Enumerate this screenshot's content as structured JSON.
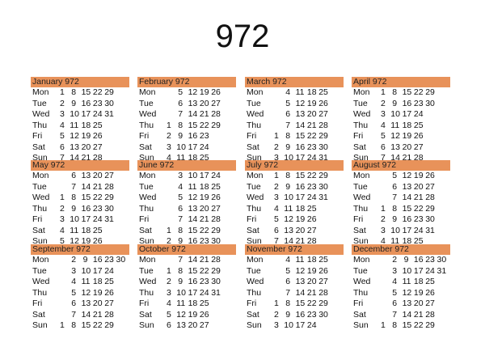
{
  "title": "972",
  "header_color": "#e8925a",
  "weekdays": [
    "Mon",
    "Tue",
    "Wed",
    "Thu",
    "Fri",
    "Sat",
    "Sun"
  ],
  "months": [
    {
      "name": "January 972",
      "rows": [
        [
          "1",
          "8",
          "15",
          "22",
          "29"
        ],
        [
          "2",
          "9",
          "16",
          "23",
          "30"
        ],
        [
          "3",
          "10",
          "17",
          "24",
          "31"
        ],
        [
          "4",
          "11",
          "18",
          "25"
        ],
        [
          "5",
          "12",
          "19",
          "26"
        ],
        [
          "6",
          "13",
          "20",
          "27"
        ],
        [
          "7",
          "14",
          "21",
          "28"
        ]
      ]
    },
    {
      "name": "February 972",
      "rows": [
        [
          "",
          "5",
          "12",
          "19",
          "26"
        ],
        [
          "",
          "6",
          "13",
          "20",
          "27"
        ],
        [
          "",
          "7",
          "14",
          "21",
          "28"
        ],
        [
          "1",
          "8",
          "15",
          "22",
          "29"
        ],
        [
          "2",
          "9",
          "16",
          "23"
        ],
        [
          "3",
          "10",
          "17",
          "24"
        ],
        [
          "4",
          "11",
          "18",
          "25"
        ]
      ]
    },
    {
      "name": "March 972",
      "rows": [
        [
          "",
          "4",
          "11",
          "18",
          "25"
        ],
        [
          "",
          "5",
          "12",
          "19",
          "26"
        ],
        [
          "",
          "6",
          "13",
          "20",
          "27"
        ],
        [
          "",
          "7",
          "14",
          "21",
          "28"
        ],
        [
          "1",
          "8",
          "15",
          "22",
          "29"
        ],
        [
          "2",
          "9",
          "16",
          "23",
          "30"
        ],
        [
          "3",
          "10",
          "17",
          "24",
          "31"
        ]
      ]
    },
    {
      "name": "April 972",
      "rows": [
        [
          "1",
          "8",
          "15",
          "22",
          "29"
        ],
        [
          "2",
          "9",
          "16",
          "23",
          "30"
        ],
        [
          "3",
          "10",
          "17",
          "24"
        ],
        [
          "4",
          "11",
          "18",
          "25"
        ],
        [
          "5",
          "12",
          "19",
          "26"
        ],
        [
          "6",
          "13",
          "20",
          "27"
        ],
        [
          "7",
          "14",
          "21",
          "28"
        ]
      ]
    },
    {
      "name": "May 972",
      "rows": [
        [
          "",
          "6",
          "13",
          "20",
          "27"
        ],
        [
          "",
          "7",
          "14",
          "21",
          "28"
        ],
        [
          "1",
          "8",
          "15",
          "22",
          "29"
        ],
        [
          "2",
          "9",
          "16",
          "23",
          "30"
        ],
        [
          "3",
          "10",
          "17",
          "24",
          "31"
        ],
        [
          "4",
          "11",
          "18",
          "25"
        ],
        [
          "5",
          "12",
          "19",
          "26"
        ]
      ]
    },
    {
      "name": "June 972",
      "rows": [
        [
          "",
          "3",
          "10",
          "17",
          "24"
        ],
        [
          "",
          "4",
          "11",
          "18",
          "25"
        ],
        [
          "",
          "5",
          "12",
          "19",
          "26"
        ],
        [
          "",
          "6",
          "13",
          "20",
          "27"
        ],
        [
          "",
          "7",
          "14",
          "21",
          "28"
        ],
        [
          "1",
          "8",
          "15",
          "22",
          "29"
        ],
        [
          "2",
          "9",
          "16",
          "23",
          "30"
        ]
      ]
    },
    {
      "name": "July 972",
      "rows": [
        [
          "1",
          "8",
          "15",
          "22",
          "29"
        ],
        [
          "2",
          "9",
          "16",
          "23",
          "30"
        ],
        [
          "3",
          "10",
          "17",
          "24",
          "31"
        ],
        [
          "4",
          "11",
          "18",
          "25"
        ],
        [
          "5",
          "12",
          "19",
          "26"
        ],
        [
          "6",
          "13",
          "20",
          "27"
        ],
        [
          "7",
          "14",
          "21",
          "28"
        ]
      ]
    },
    {
      "name": "August 972",
      "rows": [
        [
          "",
          "5",
          "12",
          "19",
          "26"
        ],
        [
          "",
          "6",
          "13",
          "20",
          "27"
        ],
        [
          "",
          "7",
          "14",
          "21",
          "28"
        ],
        [
          "1",
          "8",
          "15",
          "22",
          "29"
        ],
        [
          "2",
          "9",
          "16",
          "23",
          "30"
        ],
        [
          "3",
          "10",
          "17",
          "24",
          "31"
        ],
        [
          "4",
          "11",
          "18",
          "25"
        ]
      ]
    },
    {
      "name": "September 972",
      "rows": [
        [
          "",
          "2",
          "9",
          "16",
          "23",
          "30"
        ],
        [
          "",
          "3",
          "10",
          "17",
          "24"
        ],
        [
          "",
          "4",
          "11",
          "18",
          "25"
        ],
        [
          "",
          "5",
          "12",
          "19",
          "26"
        ],
        [
          "",
          "6",
          "13",
          "20",
          "27"
        ],
        [
          "",
          "7",
          "14",
          "21",
          "28"
        ],
        [
          "1",
          "8",
          "15",
          "22",
          "29"
        ]
      ]
    },
    {
      "name": "October 972",
      "rows": [
        [
          "",
          "7",
          "14",
          "21",
          "28"
        ],
        [
          "1",
          "8",
          "15",
          "22",
          "29"
        ],
        [
          "2",
          "9",
          "16",
          "23",
          "30"
        ],
        [
          "3",
          "10",
          "17",
          "24",
          "31"
        ],
        [
          "4",
          "11",
          "18",
          "25"
        ],
        [
          "5",
          "12",
          "19",
          "26"
        ],
        [
          "6",
          "13",
          "20",
          "27"
        ]
      ]
    },
    {
      "name": "November 972",
      "rows": [
        [
          "",
          "4",
          "11",
          "18",
          "25"
        ],
        [
          "",
          "5",
          "12",
          "19",
          "26"
        ],
        [
          "",
          "6",
          "13",
          "20",
          "27"
        ],
        [
          "",
          "7",
          "14",
          "21",
          "28"
        ],
        [
          "1",
          "8",
          "15",
          "22",
          "29"
        ],
        [
          "2",
          "9",
          "16",
          "23",
          "30"
        ],
        [
          "3",
          "10",
          "17",
          "24"
        ]
      ]
    },
    {
      "name": "December 972",
      "rows": [
        [
          "",
          "2",
          "9",
          "16",
          "23",
          "30"
        ],
        [
          "",
          "3",
          "10",
          "17",
          "24",
          "31"
        ],
        [
          "",
          "4",
          "11",
          "18",
          "25"
        ],
        [
          "",
          "5",
          "12",
          "19",
          "26"
        ],
        [
          "",
          "6",
          "13",
          "20",
          "27"
        ],
        [
          "",
          "7",
          "14",
          "21",
          "28"
        ],
        [
          "1",
          "8",
          "15",
          "22",
          "29"
        ]
      ]
    }
  ]
}
